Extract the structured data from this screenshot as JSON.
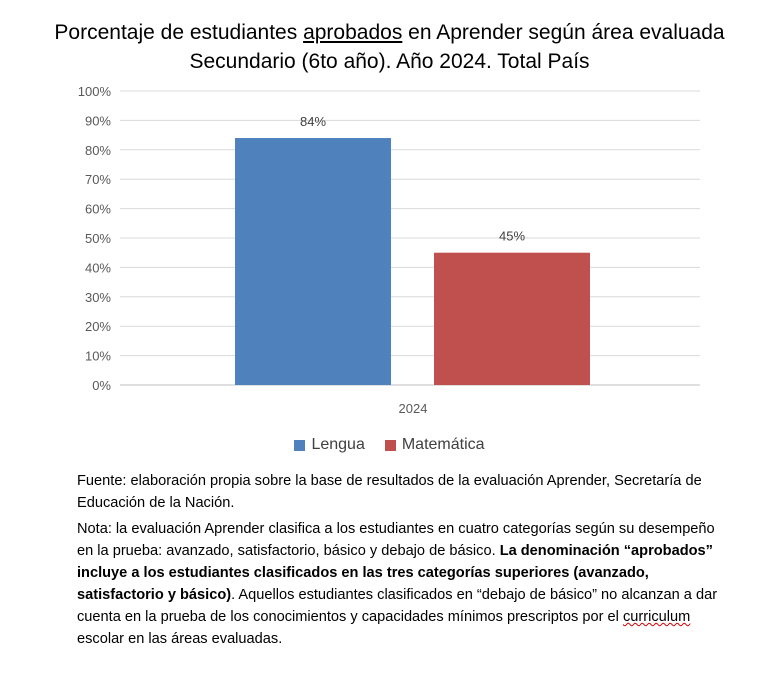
{
  "title_line1_pre": "Porcentaje de estudiantes ",
  "title_line1_emph": "aprobados",
  "title_line1_post": " en Aprender según área evaluada",
  "title_line2": "Secundario (6to año). Año 2024. Total País",
  "chart_data": {
    "type": "bar",
    "categories": [
      "2024"
    ],
    "series": [
      {
        "name": "Lengua",
        "values": [
          84
        ],
        "label": "84%",
        "color": "#4f81bd"
      },
      {
        "name": "Matemática",
        "values": [
          45
        ],
        "label": "45%",
        "color": "#c0504d"
      }
    ],
    "yticks": [
      "0%",
      "10%",
      "20%",
      "30%",
      "40%",
      "50%",
      "60%",
      "70%",
      "80%",
      "90%",
      "100%"
    ],
    "ylim": [
      0,
      100
    ],
    "grid": true,
    "legend": "bottom",
    "xlabel": "",
    "ylabel": ""
  },
  "source_text": "Fuente: elaboración propia sobre la base de resultados de la evaluación Aprender, Secretaría de Educación de la Nación.",
  "nota": {
    "part1": "Nota: la evaluación Aprender clasifica a los estudiantes en cuatro categorías según su desempeño en la prueba: avanzado, satisfactorio, básico y debajo de básico. ",
    "bold": "La denominación “aprobados” incluye a los estudiantes clasificados en las tres categorías superiores (avanzado, satisfactorio y básico)",
    "part2": ". Aquellos estudiantes clasificados en “debajo de básico” no alcanzan a dar cuenta en la prueba de los conocimientos y capacidades mínimos prescriptos por el ",
    "squiggle": "curriculum",
    "part3": " escolar en las áreas evaluadas."
  }
}
